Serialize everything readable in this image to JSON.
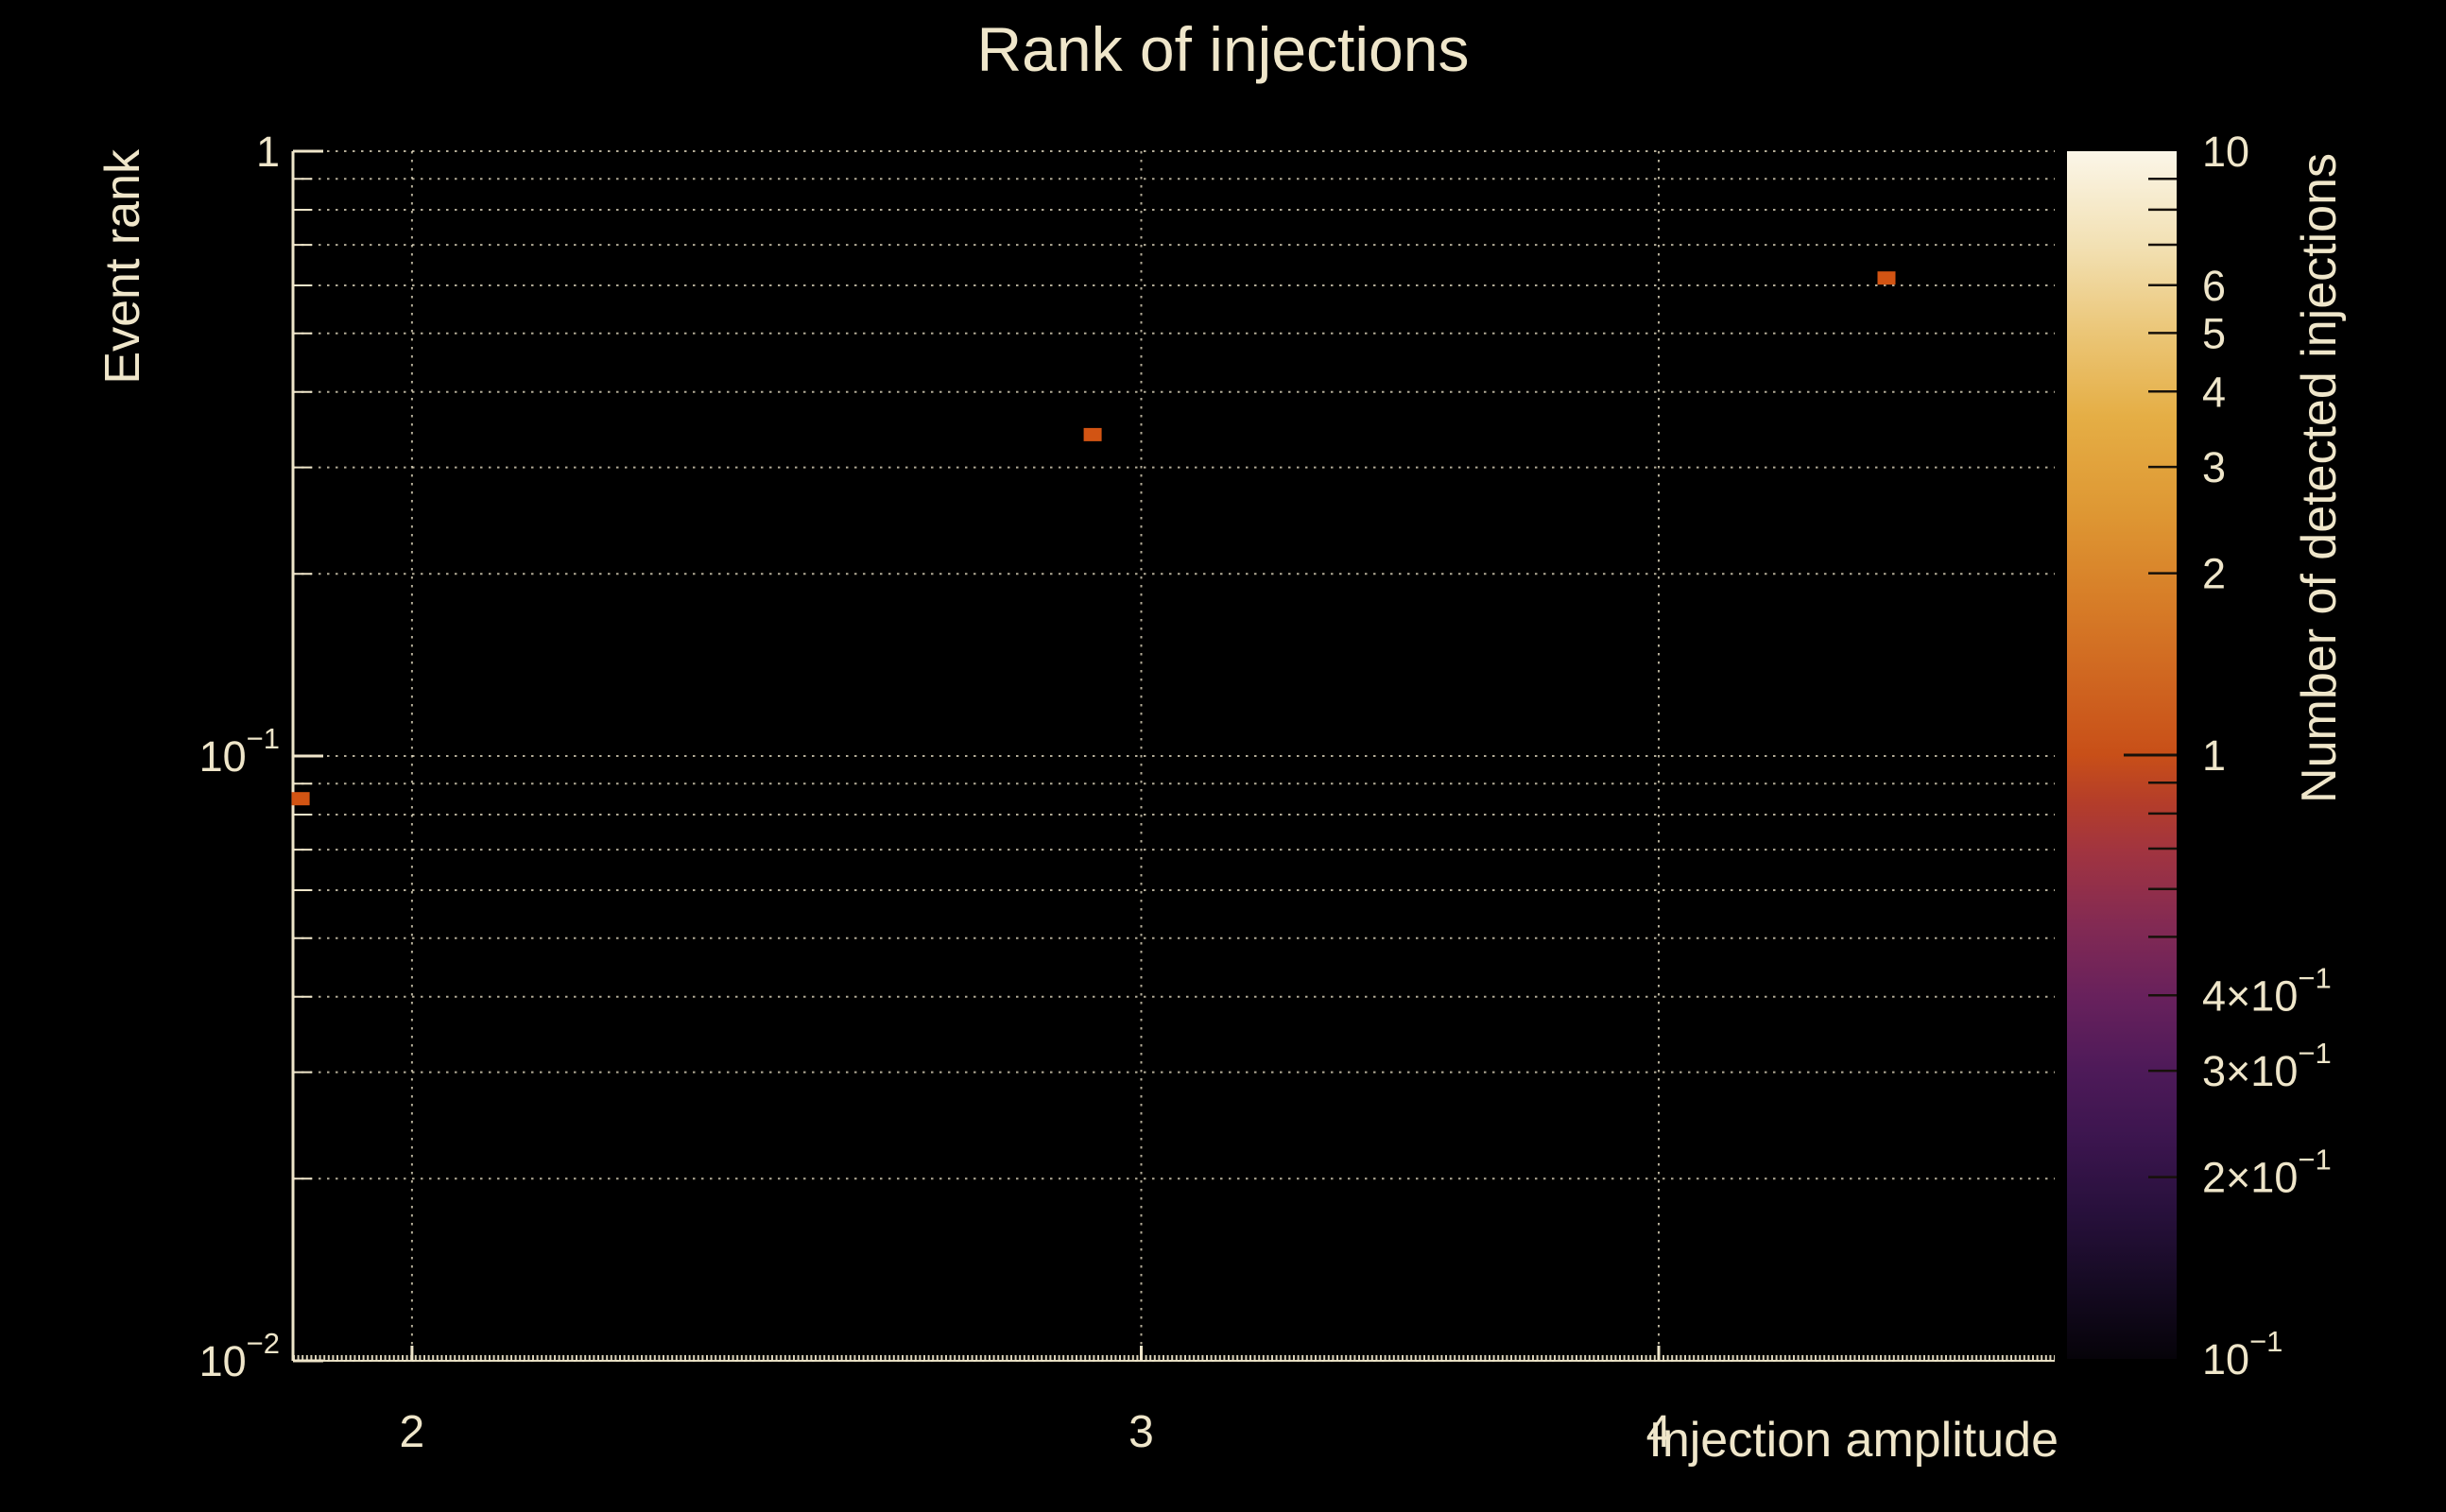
{
  "colors": {
    "background": "#000000",
    "text": "#EFE6CA",
    "grid": "#EFE6CA",
    "axis": "#EFE6CA",
    "marker": "#D25413",
    "colorbar_tick": "#17110A"
  },
  "chart_data": {
    "type": "heatmap",
    "title": "Rank of injections",
    "xlabel": "Injection amplitude",
    "ylabel": "Event rank",
    "xscale": "log",
    "yscale": "log",
    "xlim": [
      1.872,
      4.985
    ],
    "ylim": [
      0.01,
      1
    ],
    "grid": "dotted minor log grid, both axes",
    "points": [
      {
        "x": 1.88,
        "y": 0.085,
        "count": 1
      },
      {
        "x": 2.92,
        "y": 0.34,
        "count": 1
      },
      {
        "x": 4.54,
        "y": 0.617,
        "count": 1
      }
    ],
    "x_tick_labels": [
      {
        "v": 2,
        "base": "2"
      },
      {
        "v": 3,
        "base": "3"
      },
      {
        "v": 4,
        "base": "4"
      }
    ],
    "y_tick_labels": [
      {
        "v": 1,
        "base": "1"
      },
      {
        "v": 0.1,
        "base": "10",
        "exp": "−1"
      },
      {
        "v": 0.01,
        "base": "10",
        "exp": "−2"
      }
    ],
    "colorbar": {
      "label": "Number of detected injections",
      "scale": "log",
      "lim": [
        0.1,
        10
      ],
      "tick_labels": [
        {
          "v": 10,
          "base": "10"
        },
        {
          "v": 6,
          "base": "6"
        },
        {
          "v": 5,
          "base": "5"
        },
        {
          "v": 4,
          "base": "4"
        },
        {
          "v": 3,
          "base": "3"
        },
        {
          "v": 2,
          "base": "2"
        },
        {
          "v": 1,
          "base": "1"
        },
        {
          "v": 0.4,
          "base": "4×10",
          "exp": "−1"
        },
        {
          "v": 0.3,
          "base": "3×10",
          "exp": "−1"
        },
        {
          "v": 0.2,
          "base": "2×10",
          "exp": "−1"
        },
        {
          "v": 0.1,
          "base": "10",
          "exp": "−1"
        }
      ],
      "minor_ticks": [
        9,
        8,
        7,
        6,
        5,
        4,
        3,
        2,
        0.9,
        0.8,
        0.7,
        0.6,
        0.5,
        0.4,
        0.3,
        0.2
      ],
      "major_ticks": [
        1
      ],
      "gradient": [
        [
          0.0,
          "#060309"
        ],
        [
          0.06,
          "#150A22"
        ],
        [
          0.12,
          "#27103B"
        ],
        [
          0.18,
          "#3B154E"
        ],
        [
          0.24,
          "#4E1A59"
        ],
        [
          0.3,
          "#68215C"
        ],
        [
          0.36,
          "#832A53"
        ],
        [
          0.42,
          "#A13440"
        ],
        [
          0.46,
          "#B43D2A"
        ],
        [
          0.5,
          "#C84F18"
        ],
        [
          0.56,
          "#CF6520"
        ],
        [
          0.63,
          "#D77E28"
        ],
        [
          0.7,
          "#DE9733"
        ],
        [
          0.78,
          "#E5AE45"
        ],
        [
          0.85,
          "#EBC677"
        ],
        [
          0.92,
          "#F2E0B2"
        ],
        [
          1.0,
          "#FBF6E8"
        ]
      ]
    }
  }
}
